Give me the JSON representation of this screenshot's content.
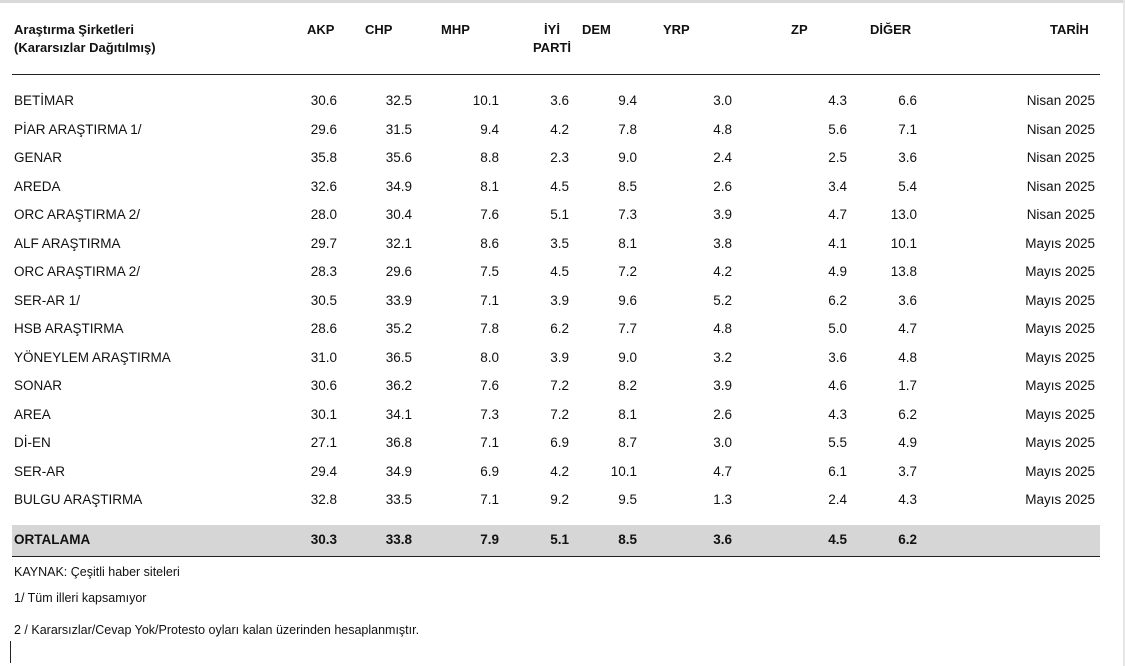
{
  "header": {
    "company_line1": "Araştırma Şirketleri",
    "company_line2": "(Kararsızlar Dağıtılmış)",
    "akp": "AKP",
    "chp": "CHP",
    "mhp": "MHP",
    "iyi_line1": "İYİ",
    "iyi_line2": "PARTİ",
    "dem": "DEM",
    "yrp": "YRP",
    "zp": "ZP",
    "diger": "DİĞER",
    "tarih": "TARİH"
  },
  "rows": [
    {
      "name": "BETİMAR",
      "akp": "30.6",
      "chp": "32.5",
      "mhp": "10.1",
      "iyi": "3.6",
      "dem": "9.4",
      "yrp": "3.0",
      "zp": "4.3",
      "diger": "6.6",
      "tarih": "Nisan 2025"
    },
    {
      "name": "PİAR ARAŞTIRMA 1/",
      "akp": "29.6",
      "chp": "31.5",
      "mhp": "9.4",
      "iyi": "4.2",
      "dem": "7.8",
      "yrp": "4.8",
      "zp": "5.6",
      "diger": "7.1",
      "tarih": "Nisan 2025"
    },
    {
      "name": "GENAR",
      "akp": "35.8",
      "chp": "35.6",
      "mhp": "8.8",
      "iyi": "2.3",
      "dem": "9.0",
      "yrp": "2.4",
      "zp": "2.5",
      "diger": "3.6",
      "tarih": "Nisan 2025"
    },
    {
      "name": "AREDA",
      "akp": "32.6",
      "chp": "34.9",
      "mhp": "8.1",
      "iyi": "4.5",
      "dem": "8.5",
      "yrp": "2.6",
      "zp": "3.4",
      "diger": "5.4",
      "tarih": "Nisan 2025"
    },
    {
      "name": "ORC ARAŞTIRMA 2/",
      "akp": "28.0",
      "chp": "30.4",
      "mhp": "7.6",
      "iyi": "5.1",
      "dem": "7.3",
      "yrp": "3.9",
      "zp": "4.7",
      "diger": "13.0",
      "tarih": "Nisan 2025"
    },
    {
      "name": "ALF ARAŞTIRMA",
      "akp": "29.7",
      "chp": "32.1",
      "mhp": "8.6",
      "iyi": "3.5",
      "dem": "8.1",
      "yrp": "3.8",
      "zp": "4.1",
      "diger": "10.1",
      "tarih": "Mayıs 2025"
    },
    {
      "name": "ORC ARAŞTIRMA 2/",
      "akp": "28.3",
      "chp": "29.6",
      "mhp": "7.5",
      "iyi": "4.5",
      "dem": "7.2",
      "yrp": "4.2",
      "zp": "4.9",
      "diger": "13.8",
      "tarih": "Mayıs 2025"
    },
    {
      "name": "SER-AR 1/",
      "akp": "30.5",
      "chp": "33.9",
      "mhp": "7.1",
      "iyi": "3.9",
      "dem": "9.6",
      "yrp": "5.2",
      "zp": "6.2",
      "diger": "3.6",
      "tarih": "Mayıs 2025"
    },
    {
      "name": "HSB ARAŞTIRMA",
      "akp": "28.6",
      "chp": "35.2",
      "mhp": "7.8",
      "iyi": "6.2",
      "dem": "7.7",
      "yrp": "4.8",
      "zp": "5.0",
      "diger": "4.7",
      "tarih": "Mayıs 2025"
    },
    {
      "name": "YÖNEYLEM ARAŞTIRMA",
      "akp": "31.0",
      "chp": "36.5",
      "mhp": "8.0",
      "iyi": "3.9",
      "dem": "9.0",
      "yrp": "3.2",
      "zp": "3.6",
      "diger": "4.8",
      "tarih": "Mayıs 2025"
    },
    {
      "name": "SONAR",
      "akp": "30.6",
      "chp": "36.2",
      "mhp": "7.6",
      "iyi": "7.2",
      "dem": "8.2",
      "yrp": "3.9",
      "zp": "4.6",
      "diger": "1.7",
      "tarih": "Mayıs 2025"
    },
    {
      "name": "AREA",
      "akp": "30.1",
      "chp": "34.1",
      "mhp": "7.3",
      "iyi": "7.2",
      "dem": "8.1",
      "yrp": "2.6",
      "zp": "4.3",
      "diger": "6.2",
      "tarih": "Mayıs 2025"
    },
    {
      "name": "Dİ-EN",
      "akp": "27.1",
      "chp": "36.8",
      "mhp": "7.1",
      "iyi": "6.9",
      "dem": "8.7",
      "yrp": "3.0",
      "zp": "5.5",
      "diger": "4.9",
      "tarih": "Mayıs 2025"
    },
    {
      "name": "SER-AR",
      "akp": "29.4",
      "chp": "34.9",
      "mhp": "6.9",
      "iyi": "4.2",
      "dem": "10.1",
      "yrp": "4.7",
      "zp": "6.1",
      "diger": "3.7",
      "tarih": "Mayıs 2025"
    },
    {
      "name": "BULGU ARAŞTIRMA",
      "akp": "32.8",
      "chp": "33.5",
      "mhp": "7.1",
      "iyi": "9.2",
      "dem": "9.5",
      "yrp": "1.3",
      "zp": "2.4",
      "diger": "4.3",
      "tarih": "Mayıs 2025"
    }
  ],
  "average": {
    "name": "ORTALAMA",
    "akp": "30.3",
    "chp": "33.8",
    "mhp": "7.9",
    "iyi": "5.1",
    "dem": "8.5",
    "yrp": "3.6",
    "zp": "4.5",
    "diger": "6.2"
  },
  "notes": {
    "source": "KAYNAK: Çeşitli haber siteleri",
    "note1": "1/ Tüm illeri kapsamıyor",
    "note2": "2 / Kararsızlar/Cevap Yok/Protesto oyları kalan üzerinden hesaplanmıştır."
  },
  "colors": {
    "average_row_bg": "#d6d6d6",
    "rule": "#222222"
  }
}
